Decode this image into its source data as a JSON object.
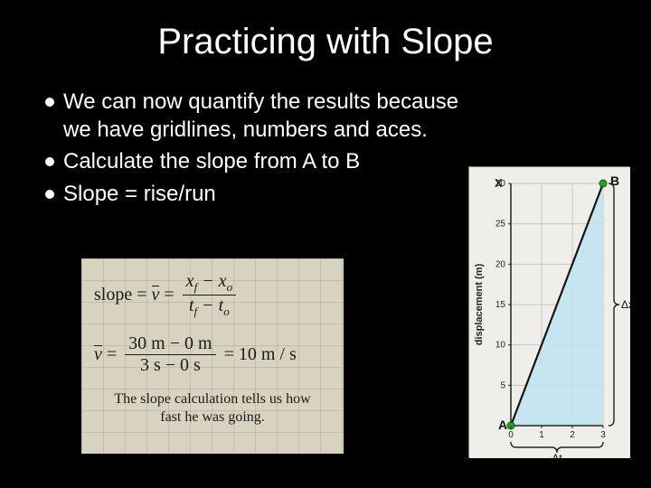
{
  "title": "Practicing with Slope",
  "bullets": [
    "We can now quantify the results because we have gridlines, numbers and aces.",
    "Calculate the slope from A to B",
    "Slope = rise/run"
  ],
  "formula": {
    "background_color": "#d8d2c0",
    "grid_color": "rgba(140,130,100,.25)",
    "text_color": "#1a1a1a",
    "line1_lhs_a": "slope",
    "line1_lhs_b": "v",
    "line1_num": "x<span class=\"sub\">f</span> − x<span class=\"sub\">o</span>",
    "line1_den": "t<span class=\"sub\">f</span> − t<span class=\"sub\">o</span>",
    "line2_lhs": "v",
    "line2_num": "30 m − 0 m",
    "line2_den": "3 s − 0 s",
    "line2_rhs": "10 m / s",
    "caption_a": "The slope calculation tells us how",
    "caption_b": "fast he was going."
  },
  "chart": {
    "type": "line",
    "background_color": "#f0eee8",
    "plot_background": "#f0eee8",
    "border_color": "#7b7b6e",
    "axis_color": "#222222",
    "grid_color": "#c9c7bd",
    "line_color": "#151515",
    "fill_color": "#bfe3f2",
    "point_color": "#2aa02a",
    "brace_color": "#222222",
    "xlim": [
      0,
      3
    ],
    "ylim": [
      0,
      30
    ],
    "xticks": [
      0,
      1,
      2,
      3
    ],
    "yticks": [
      5,
      10,
      15,
      20,
      25,
      30
    ],
    "ylabel": "displacement (m)",
    "label_fontsize": 11,
    "tick_fontsize": 10,
    "points": {
      "A": {
        "x": 0,
        "y": 0
      },
      "B": {
        "x": 3,
        "y": 30
      }
    },
    "x_label_text": "X",
    "delta_x_label": "Δx",
    "delta_t_label": "Δt",
    "a_label": "A",
    "b_label": "B"
  }
}
